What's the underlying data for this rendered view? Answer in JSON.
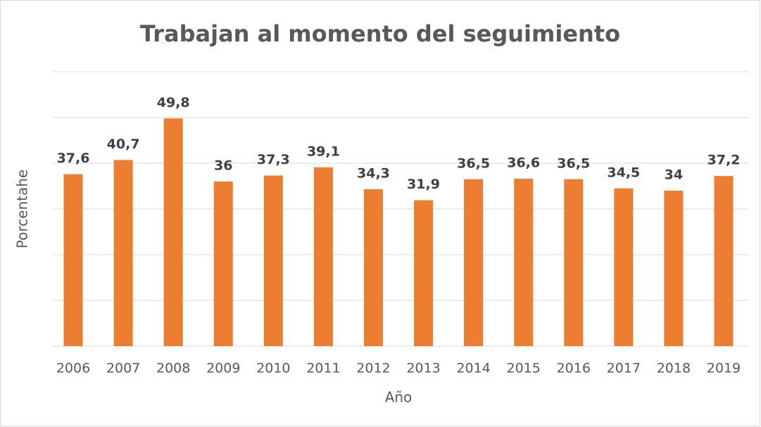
{
  "chart_data": {
    "type": "bar",
    "title": "Trabajan al momento del seguimiento",
    "x_label": "Año",
    "y_label": "Porcentahe",
    "categories": [
      "2006",
      "2007",
      "2008",
      "2009",
      "2010",
      "2011",
      "2012",
      "2013",
      "2014",
      "2015",
      "2016",
      "2017",
      "2018",
      "2019"
    ],
    "values": [
      37.6,
      40.7,
      49.8,
      36,
      37.3,
      39.1,
      34.3,
      31.9,
      36.5,
      36.6,
      36.5,
      34.5,
      34,
      37.2
    ],
    "value_labels": [
      "37,6",
      "40,7",
      "49,8",
      "36",
      "37,3",
      "39,1",
      "34,3",
      "31,9",
      "36,5",
      "36,6",
      "36,5",
      "34,5",
      "34",
      "37,2"
    ],
    "color": "#ed7d31",
    "ylim": [
      0,
      60
    ],
    "yticks": [
      0,
      10,
      20,
      30,
      40,
      50,
      60
    ],
    "grid": true
  }
}
